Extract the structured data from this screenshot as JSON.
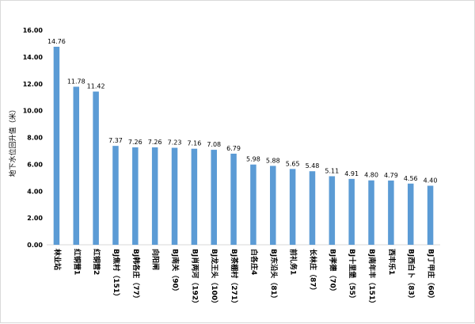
{
  "chart_data": {
    "type": "bar",
    "ylabel": "地下水位回升值（米）",
    "ylim": [
      0,
      16
    ],
    "yticks": [
      "0.00",
      "2.00",
      "4.00",
      "6.00",
      "8.00",
      "10.00",
      "12.00",
      "14.00",
      "16.00"
    ],
    "grid": false,
    "legend": "none",
    "bar_color": "#5b9bd5",
    "categories": [
      "林业站",
      "红铜营1",
      "红铜营2",
      "BJ焦村（151）",
      "BJ韩各庄（77）",
      "向阳闸",
      "BJ南关（90）",
      "BJ肖两河（192）",
      "BJ龙王头（100）",
      "BJ茶棚村（271）",
      "白各庄4",
      "BJ东沿头（81）",
      "前礼务1",
      "长林庄（87）",
      "BJ孝德（70）",
      "BJ十里堡（55）",
      "BJ南年丰（151）",
      "西丰乐1",
      "BJ西白卜（83）",
      "BJ丁甲庄（60）"
    ],
    "values": [
      14.76,
      11.78,
      11.42,
      7.37,
      7.26,
      7.26,
      7.23,
      7.16,
      7.08,
      6.79,
      5.98,
      5.88,
      5.65,
      5.48,
      5.11,
      4.91,
      4.8,
      4.79,
      4.56,
      4.4
    ],
    "value_labels": [
      "14.76",
      "11.78",
      "11.42",
      "7.37",
      "7.26",
      "7.26",
      "7.23",
      "7.16",
      "7.08",
      "6.79",
      "5.98",
      "5.88",
      "5.65",
      "5.48",
      "5.11",
      "4.91",
      "4.80",
      "4.79",
      "4.56",
      "4.40"
    ]
  }
}
